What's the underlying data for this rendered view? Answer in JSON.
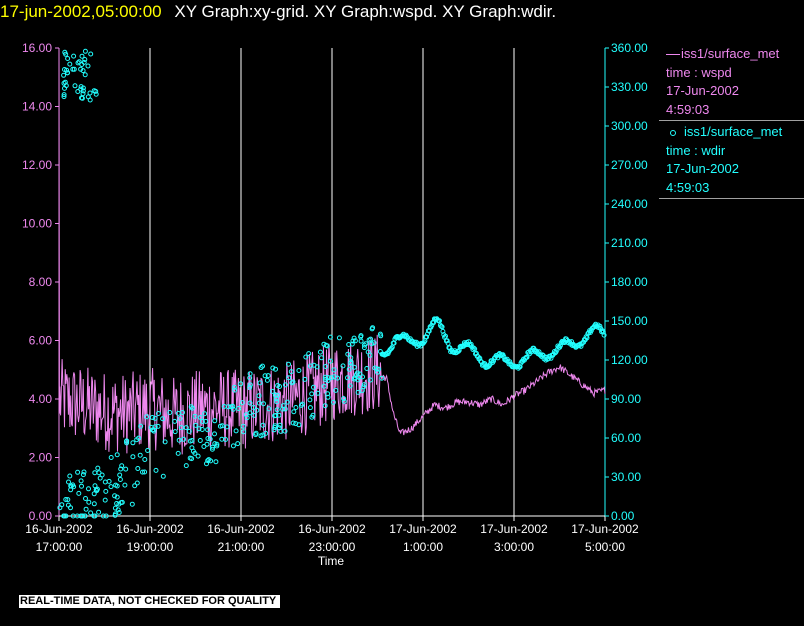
{
  "title": {
    "time": "17-jun-2002,05:00:00",
    "graphs": "XY Graph:xy-grid.  XY Graph:wspd.  XY Graph:wdir."
  },
  "notice": "REAL-TIME DATA, NOT CHECKED FOR QUALITY",
  "colors": {
    "wspd": "#ee88ee",
    "wdir": "#22ffff",
    "axis_text": "#ffffff",
    "grid": "#ffffff"
  },
  "legend": [
    {
      "marker": "line",
      "name": "iss1/surface_met",
      "var": "time : wspd",
      "date": "17-Jun-2002",
      "time": "4:59:03"
    },
    {
      "marker": "circle",
      "name": "iss1/surface_met",
      "var": "time : wdir",
      "date": "17-Jun-2002",
      "time": "4:59:03"
    }
  ],
  "chart_data": {
    "type": "line",
    "xlabel": "Time",
    "x_ticks": [
      [
        "16-Jun-2002",
        "17:00:00"
      ],
      [
        "16-Jun-2002",
        "19:00:00"
      ],
      [
        "16-Jun-2002",
        "21:00:00"
      ],
      [
        "16-Jun-2002",
        "23:00:00"
      ],
      [
        "17-Jun-2002",
        "1:00:00"
      ],
      [
        "17-Jun-2002",
        "3:00:00"
      ],
      [
        "17-Jun-2002",
        "5:00:00"
      ]
    ],
    "x_range_hours": [
      17,
      29
    ],
    "y_left": {
      "ticks": [
        "0.00",
        "2.00",
        "4.00",
        "6.00",
        "8.00",
        "10.00",
        "12.00",
        "14.00",
        "16.00"
      ],
      "ylim": [
        0,
        16
      ]
    },
    "y_right": {
      "ticks": [
        "0.00",
        "30.00",
        "60.00",
        "90.00",
        "120.00",
        "150.00",
        "180.00",
        "210.00",
        "240.00",
        "270.00",
        "300.00",
        "330.00",
        "360.00"
      ],
      "ylim": [
        0,
        360
      ]
    },
    "grid": "vertical",
    "series": [
      {
        "name": "iss1/surface_met time : wspd",
        "axis": "left",
        "style": "line",
        "x": [
          17.0,
          17.5,
          18.0,
          18.5,
          19.0,
          19.5,
          20.0,
          20.5,
          21.0,
          21.5,
          22.0,
          22.5,
          23.0,
          23.5,
          24.0,
          24.2,
          24.35,
          24.5,
          24.75,
          25.0,
          25.25,
          25.5,
          25.75,
          26.0,
          26.25,
          26.5,
          26.75,
          27.0,
          27.25,
          27.5,
          27.75,
          28.0,
          28.25,
          28.5,
          28.75,
          29.0
        ],
        "y": [
          4.0,
          3.8,
          3.6,
          3.5,
          3.7,
          3.4,
          3.6,
          3.7,
          3.6,
          3.8,
          3.9,
          4.2,
          4.6,
          4.8,
          4.9,
          4.7,
          3.5,
          2.8,
          3.0,
          3.4,
          3.8,
          3.7,
          3.9,
          3.9,
          3.8,
          4.0,
          3.8,
          4.1,
          4.3,
          4.6,
          4.9,
          5.1,
          4.8,
          4.5,
          4.2,
          4.3
        ],
        "noise_amplitude_until_hour_24": 1.4
      },
      {
        "name": "iss1/surface_met time : wdir",
        "axis": "right",
        "style": "scatter",
        "x": [
          17.0,
          17.5,
          18.0,
          18.5,
          19.0,
          19.5,
          20.0,
          20.5,
          21.0,
          21.5,
          22.0,
          22.5,
          23.0,
          23.5,
          24.0,
          24.4,
          24.7,
          25.0,
          25.3,
          25.6,
          26.0,
          26.4,
          26.8,
          27.2,
          27.6,
          28.0,
          28.4,
          28.8,
          29.0
        ],
        "y": [
          5,
          10,
          22,
          32,
          52,
          58,
          62,
          70,
          80,
          90,
          92,
          100,
          112,
          118,
          120,
          138,
          132,
          138,
          148,
          132,
          128,
          120,
          118,
          120,
          125,
          128,
          135,
          142,
          140
        ],
        "early_cluster": {
          "x": [
            17.1,
            17.9
          ],
          "y": [
            320,
            360
          ]
        }
      }
    ]
  }
}
